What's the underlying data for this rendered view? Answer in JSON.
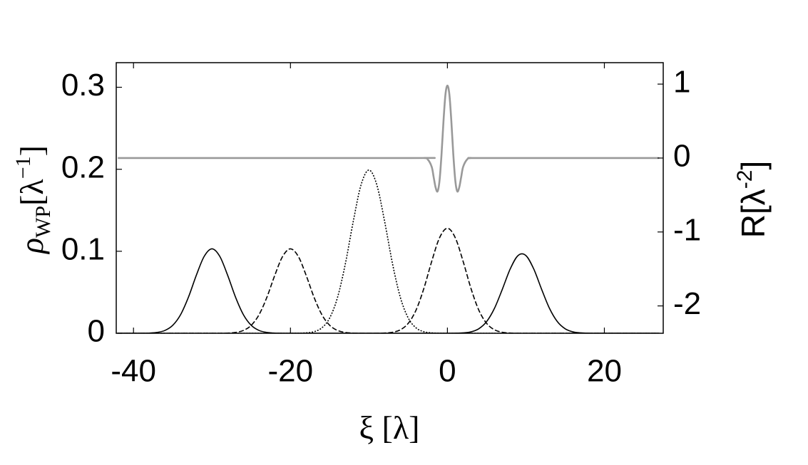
{
  "chart_data": {
    "type": "line",
    "xlabel": "ξ [λ]",
    "ylabel": {
      "symbol": "ρ",
      "sub": "WP",
      "unit": "[λ",
      "sup": "−1",
      "close": "]"
    },
    "y2label": {
      "unit": "R[λ",
      "sup": "-2",
      "close": "]"
    },
    "xlim": [
      -42.2,
      27.5
    ],
    "ylim": [
      0,
      0.33
    ],
    "y2lim": [
      -2.37,
      1.29
    ],
    "xticks": [
      -40,
      -20,
      0,
      20
    ],
    "yticks": [
      0,
      0.1,
      0.2,
      0.3
    ],
    "y2ticks": [
      -2,
      -1,
      0,
      1
    ],
    "grid": false,
    "x": [
      -42,
      -41,
      -40,
      -39,
      -38,
      -37,
      -36,
      -35,
      -34,
      -33,
      -32,
      -31,
      -30,
      -29,
      -28,
      -27,
      -26,
      -25,
      -24,
      -23,
      -22,
      -21,
      -20,
      -19,
      -18,
      -17,
      -16,
      -15,
      -14,
      -13,
      -12,
      -11,
      -10,
      -9,
      -8,
      -7,
      -6,
      -5,
      -4,
      -3,
      -2,
      -1,
      0,
      1,
      2,
      3,
      4,
      5,
      6,
      7,
      8,
      9,
      10,
      11,
      12,
      13,
      14,
      15,
      16,
      17,
      18,
      19,
      20,
      21,
      22,
      23,
      24,
      25,
      26,
      27
    ],
    "series": [
      {
        "color": "#000000",
        "dash": "solid",
        "values": [
          0,
          0,
          0,
          0,
          0.0002,
          0.001,
          0.0034,
          0.0097,
          0.0227,
          0.044,
          0.0706,
          0.0937,
          0.103,
          0.0937,
          0.0706,
          0.044,
          0.0227,
          0.0097,
          0.0034,
          0.001,
          0.0002,
          0,
          0,
          0,
          0,
          0,
          0,
          0,
          0,
          0,
          0,
          0,
          0,
          0,
          0,
          0,
          0,
          0,
          0,
          0,
          0,
          0,
          0,
          0.0001,
          0.0005,
          0.0017,
          0.0055,
          0.0143,
          0.0305,
          0.0537,
          0.0784,
          0.0948,
          0.0948,
          0.0784,
          0.0537,
          0.0305,
          0.0143,
          0.0055,
          0.0017,
          0.0005,
          0.0001,
          0,
          0,
          0,
          0,
          0,
          0,
          0,
          0,
          0
        ]
      },
      {
        "color": "#000000",
        "dash": "dashed",
        "values": [
          0,
          0,
          0,
          0,
          0,
          0,
          0,
          0,
          0,
          0,
          0,
          0,
          0,
          0,
          0.0002,
          0.001,
          0.0034,
          0.0097,
          0.0227,
          0.044,
          0.0706,
          0.0937,
          0.103,
          0.0937,
          0.0706,
          0.044,
          0.0227,
          0.0097,
          0.0034,
          0.001,
          0.0002,
          0,
          0,
          0,
          0.0003,
          0.0012,
          0.0042,
          0.012,
          0.0282,
          0.0547,
          0.0877,
          0.1165,
          0.128,
          0.1165,
          0.0877,
          0.0547,
          0.0282,
          0.012,
          0.0042,
          0.0012,
          0.0003,
          0,
          0,
          0,
          0,
          0,
          0,
          0,
          0,
          0,
          0,
          0,
          0,
          0,
          0,
          0,
          0,
          0,
          0,
          0
        ]
      },
      {
        "color": "#000000",
        "dash": "dotted",
        "values": [
          0,
          0,
          0,
          0,
          0,
          0,
          0,
          0,
          0,
          0,
          0,
          0,
          0,
          0,
          0,
          0,
          0,
          0,
          0,
          0,
          0,
          0,
          0,
          0.0001,
          0.0005,
          0.0019,
          0.0066,
          0.0187,
          0.0438,
          0.085,
          0.1363,
          0.1811,
          0.199,
          0.1811,
          0.1363,
          0.085,
          0.0438,
          0.0187,
          0.0066,
          0.0019,
          0.0005,
          0.0001,
          0,
          0,
          0,
          0,
          0,
          0,
          0,
          0,
          0,
          0,
          0,
          0,
          0,
          0,
          0,
          0,
          0,
          0,
          0,
          0,
          0,
          0,
          0,
          0,
          0,
          0,
          0,
          0
        ]
      },
      {
        "color": "#999999",
        "dash": "solid",
        "axis": "y2",
        "x": [
          -42,
          -5,
          -3,
          -2.5,
          -2,
          -1.75,
          -1.5,
          -1.25,
          -1,
          -0.75,
          -0.5,
          -0.25,
          0,
          0.25,
          0.5,
          0.75,
          1,
          1.25,
          1.5,
          1.75,
          2,
          2.5,
          3,
          5,
          27
        ],
        "values": [
          0,
          0,
          0,
          -0.02,
          -0.12,
          -0.26,
          -0.4,
          -0.45,
          -0.3,
          0.05,
          0.5,
          0.86,
          0.98,
          0.86,
          0.5,
          0.05,
          -0.3,
          -0.45,
          -0.4,
          -0.26,
          -0.12,
          -0.02,
          0,
          0,
          0
        ]
      }
    ]
  }
}
